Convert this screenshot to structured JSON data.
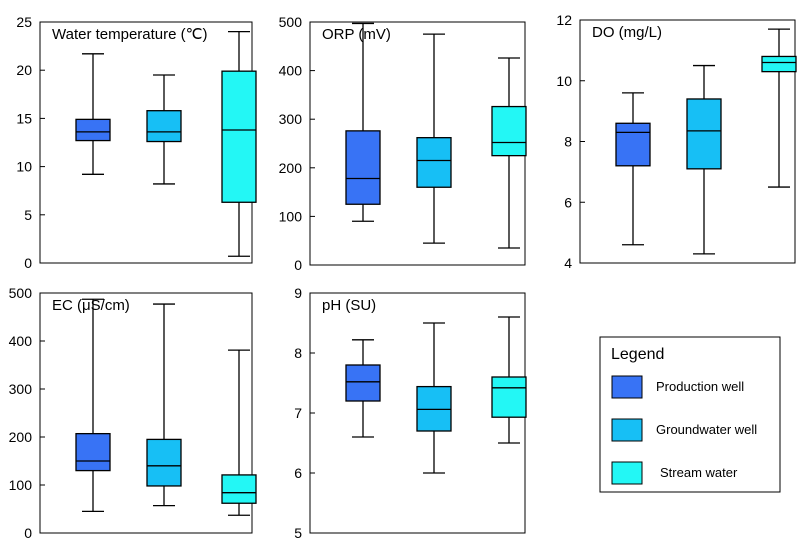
{
  "chart_data": {
    "type": "boxplot",
    "series_names": [
      "Production well",
      "Groundwater well",
      "Stream water"
    ],
    "colors": {
      "Production well": "#3873F5",
      "Groundwater well": "#17BFF5",
      "Stream water": "#23F7F5"
    },
    "panels": [
      {
        "title": "Water temperature (℃)",
        "ylim": [
          0,
          25
        ],
        "yticks": [
          0,
          5,
          10,
          15,
          20,
          25
        ],
        "boxes": [
          {
            "series": "Production well",
            "min": 9.2,
            "q1": 12.7,
            "median": 13.6,
            "q3": 14.9,
            "max": 21.7
          },
          {
            "series": "Groundwater well",
            "min": 8.2,
            "q1": 12.6,
            "median": 13.6,
            "q3": 15.8,
            "max": 19.5
          },
          {
            "series": "Stream water",
            "min": 0.7,
            "q1": 6.3,
            "median": 13.8,
            "q3": 19.9,
            "max": 24.0
          }
        ]
      },
      {
        "title": "ORP (mV)",
        "ylim": [
          0,
          500
        ],
        "yticks": [
          0,
          100,
          200,
          300,
          400,
          500
        ],
        "boxes": [
          {
            "series": "Production well",
            "min": 90,
            "q1": 125,
            "median": 178,
            "q3": 276,
            "max": 497
          },
          {
            "series": "Groundwater well",
            "min": 45,
            "q1": 160,
            "median": 215,
            "q3": 262,
            "max": 475
          },
          {
            "series": "Stream water",
            "min": 35,
            "q1": 225,
            "median": 252,
            "q3": 326,
            "max": 426
          }
        ]
      },
      {
        "title": "DO (mg/L)",
        "ylim": [
          4,
          12
        ],
        "yticks": [
          4,
          6,
          8,
          10,
          12
        ],
        "boxes": [
          {
            "series": "Production well",
            "min": 4.6,
            "q1": 7.2,
            "median": 8.3,
            "q3": 8.6,
            "max": 9.6
          },
          {
            "series": "Groundwater well",
            "min": 4.3,
            "q1": 7.1,
            "median": 8.35,
            "q3": 9.4,
            "max": 10.5
          },
          {
            "series": "Stream water",
            "min": 6.5,
            "q1": 10.3,
            "median": 10.6,
            "q3": 10.8,
            "max": 11.7
          }
        ]
      },
      {
        "title": "EC (μS/cm)",
        "ylim": [
          0,
          500
        ],
        "yticks": [
          0,
          100,
          200,
          300,
          400,
          500
        ],
        "boxes": [
          {
            "series": "Production well",
            "min": 45,
            "q1": 130,
            "median": 150,
            "q3": 207,
            "max": 487
          },
          {
            "series": "Groundwater well",
            "min": 57,
            "q1": 98,
            "median": 140,
            "q3": 195,
            "max": 477
          },
          {
            "series": "Stream water",
            "min": 37,
            "q1": 62,
            "median": 84,
            "q3": 121,
            "max": 381
          }
        ]
      },
      {
        "title": "pH (SU)",
        "ylim": [
          5,
          9
        ],
        "yticks": [
          5,
          6,
          7,
          8,
          9
        ],
        "boxes": [
          {
            "series": "Production well",
            "min": 6.6,
            "q1": 7.2,
            "median": 7.52,
            "q3": 7.8,
            "max": 8.22
          },
          {
            "series": "Groundwater well",
            "min": 6.0,
            "q1": 6.7,
            "median": 7.06,
            "q3": 7.44,
            "max": 8.5
          },
          {
            "series": "Stream water",
            "min": 6.5,
            "q1": 6.93,
            "median": 7.42,
            "q3": 7.6,
            "max": 8.6
          }
        ]
      }
    ],
    "legend": {
      "title": "Legend",
      "items": [
        "Production well",
        "Groundwater well",
        "Stream water"
      ]
    }
  }
}
